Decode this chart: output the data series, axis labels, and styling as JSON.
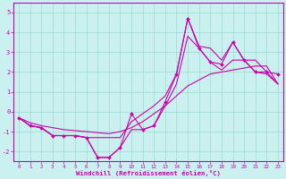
{
  "xlabel": "Windchill (Refroidissement éolien,°C)",
  "bg_color": "#caf0f0",
  "grid_color": "#99ddcc",
  "line_color": "#cc00aa",
  "hours": [
    0,
    1,
    2,
    3,
    4,
    5,
    6,
    7,
    8,
    9,
    10,
    11,
    12,
    13,
    14,
    15,
    16,
    17,
    18,
    19,
    20,
    21,
    22,
    23
  ],
  "values_actual": [
    -0.3,
    -0.7,
    -0.8,
    -1.2,
    -1.2,
    -1.2,
    -1.3,
    -2.3,
    -2.3,
    -1.8,
    -0.1,
    -0.9,
    -0.7,
    0.5,
    1.9,
    4.7,
    3.2,
    2.5,
    2.4,
    3.5,
    2.6,
    2.0,
    2.0,
    1.9
  ],
  "values_upper": [
    -0.3,
    -0.7,
    -0.8,
    -1.2,
    -1.2,
    -1.2,
    -1.3,
    -1.3,
    -1.3,
    -1.3,
    -0.5,
    -0.1,
    0.3,
    0.8,
    1.9,
    4.7,
    3.3,
    3.2,
    2.6,
    3.5,
    2.6,
    2.6,
    2.0,
    1.4
  ],
  "values_lower": [
    -0.3,
    -0.7,
    -0.8,
    -1.2,
    -1.2,
    -1.2,
    -1.3,
    -2.3,
    -2.3,
    -1.8,
    -0.9,
    -0.9,
    -0.7,
    0.3,
    1.4,
    3.8,
    3.2,
    2.5,
    2.1,
    2.6,
    2.6,
    2.0,
    1.9,
    1.4
  ],
  "values_smooth": [
    -0.3,
    -0.55,
    -0.7,
    -0.8,
    -0.9,
    -0.95,
    -1.0,
    -1.05,
    -1.1,
    -1.0,
    -0.8,
    -0.5,
    -0.1,
    0.3,
    0.8,
    1.3,
    1.6,
    1.9,
    2.0,
    2.1,
    2.2,
    2.3,
    2.3,
    1.4
  ],
  "ylim": [
    -2.5,
    5.5
  ],
  "yticks": [
    -2,
    -1,
    0,
    1,
    2,
    3,
    4,
    5
  ],
  "xlim": [
    -0.5,
    23.5
  ],
  "xticks": [
    0,
    1,
    2,
    3,
    4,
    5,
    6,
    7,
    8,
    9,
    10,
    11,
    12,
    13,
    14,
    15,
    16,
    17,
    18,
    19,
    20,
    21,
    22,
    23
  ]
}
